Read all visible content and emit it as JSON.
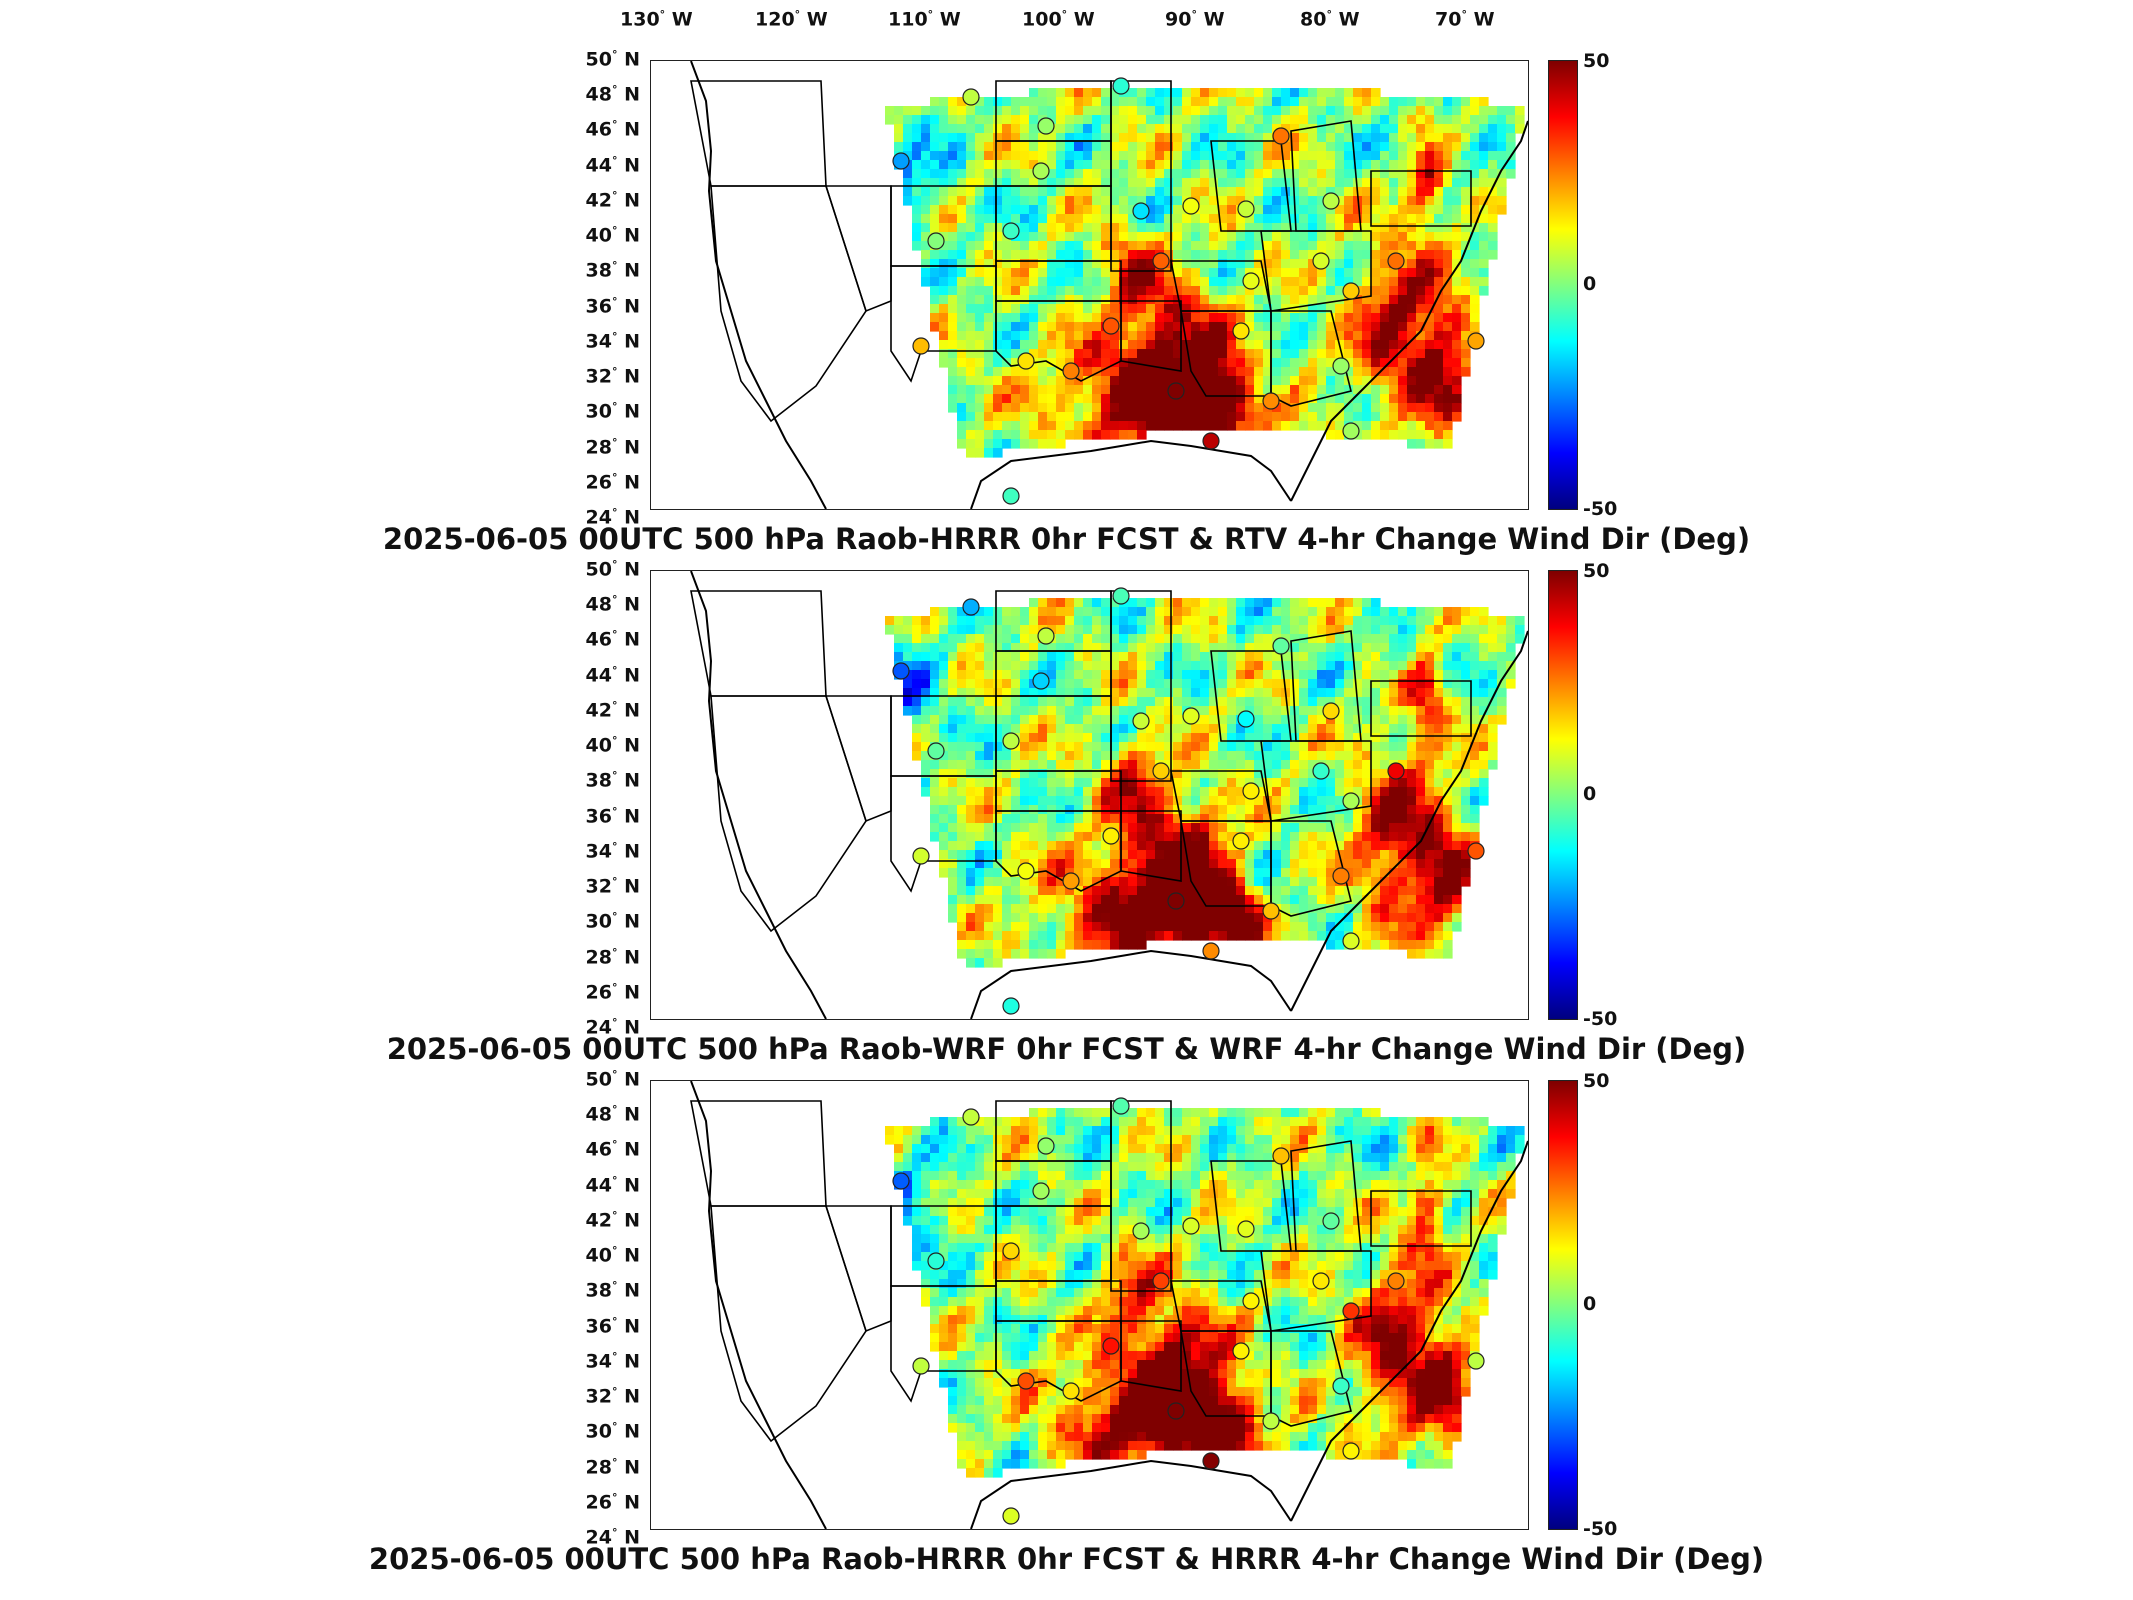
{
  "lon_ticks": [
    {
      "deg": "130",
      "hemi": "W"
    },
    {
      "deg": "120",
      "hemi": "W"
    },
    {
      "deg": "110",
      "hemi": "W"
    },
    {
      "deg": "100",
      "hemi": "W"
    },
    {
      "deg": "90",
      "hemi": "W"
    },
    {
      "deg": "80",
      "hemi": "W"
    },
    {
      "deg": "70",
      "hemi": "W"
    }
  ],
  "lat_ticks": [
    {
      "deg": "50",
      "hemi": "N"
    },
    {
      "deg": "48",
      "hemi": "N"
    },
    {
      "deg": "46",
      "hemi": "N"
    },
    {
      "deg": "44",
      "hemi": "N"
    },
    {
      "deg": "42",
      "hemi": "N"
    },
    {
      "deg": "40",
      "hemi": "N"
    },
    {
      "deg": "38",
      "hemi": "N"
    },
    {
      "deg": "36",
      "hemi": "N"
    },
    {
      "deg": "34",
      "hemi": "N"
    },
    {
      "deg": "32",
      "hemi": "N"
    },
    {
      "deg": "30",
      "hemi": "N"
    },
    {
      "deg": "28",
      "hemi": "N"
    },
    {
      "deg": "26",
      "hemi": "N"
    },
    {
      "deg": "24",
      "hemi": "N"
    }
  ],
  "colorbar": {
    "max_label": "50",
    "mid_label": "0",
    "min_label": "-50",
    "colors": [
      "#7f0000",
      "#ff0000",
      "#ff8000",
      "#ffff00",
      "#80ff80",
      "#00ffff",
      "#0080ff",
      "#0000ff",
      "#00007f"
    ]
  },
  "panels": [
    {
      "title": "2025-06-05 00UTC 500 hPa Raob-HRRR 0hr FCST & RTV 4-hr Change Wind Dir (Deg)"
    },
    {
      "title": "2025-06-05 00UTC 500 hPa Raob-WRF 0hr FCST & WRF 4-hr Change Wind Dir (Deg)"
    },
    {
      "title": "2025-06-05 00UTC 500 hPa Raob-HRRR 0hr FCST & HRRR 4-hr Change Wind Dir (Deg)"
    }
  ]
}
